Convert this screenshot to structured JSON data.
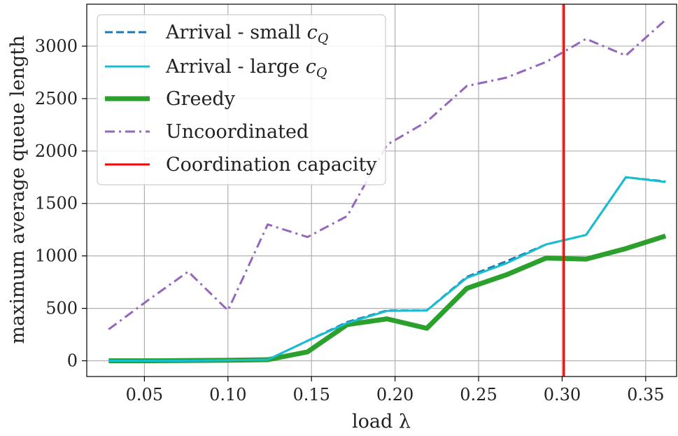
{
  "chart_data": {
    "type": "line",
    "title": "",
    "xlabel": "load  λ",
    "ylabel": "maximum average queue length",
    "xlim": [
      0.0155,
      0.3685
    ],
    "ylim": [
      -150,
      3400
    ],
    "xticks": [
      0.05,
      0.1,
      0.15,
      0.2,
      0.25,
      0.3,
      0.35
    ],
    "xtick_labels": [
      "0.05",
      "0.10",
      "0.15",
      "0.20",
      "0.25",
      "0.30",
      "0.35"
    ],
    "yticks": [
      0,
      500,
      1000,
      1500,
      2000,
      2500,
      3000
    ],
    "ytick_labels": [
      "0",
      "500",
      "1000",
      "1500",
      "2000",
      "2500",
      "3000"
    ],
    "grid": true,
    "legend_position": "top-left",
    "x": [
      0.0286,
      0.0524,
      0.0762,
      0.1,
      0.1238,
      0.1476,
      0.1714,
      0.1952,
      0.219,
      0.2429,
      0.2667,
      0.2905,
      0.3143,
      0.3381,
      0.3619
    ],
    "series": [
      {
        "name": "Arrival - small",
        "name_sub": "c",
        "name_subscript": "Q",
        "color": "#1f77b4",
        "style": "dashed",
        "values": [
          0,
          0,
          0,
          5,
          10,
          190,
          370,
          480,
          480,
          800,
          950,
          1110,
          1200,
          1750,
          1710
        ]
      },
      {
        "name": "Arrival - large",
        "name_sub": "c",
        "name_subscript": "Q",
        "color": "#17becf",
        "style": "solid",
        "values": [
          0,
          0,
          0,
          5,
          10,
          190,
          360,
          475,
          480,
          790,
          930,
          1110,
          1200,
          1750,
          1705
        ]
      },
      {
        "name": "Greedy",
        "color": "#2ca02c",
        "style": "thick",
        "values": [
          0,
          0,
          3,
          5,
          10,
          85,
          345,
          400,
          310,
          690,
          820,
          980,
          970,
          1070,
          1190
        ]
      },
      {
        "name": "Uncoordinated",
        "color": "#9467bd",
        "style": "dashdot",
        "values": [
          300,
          580,
          850,
          480,
          1300,
          1180,
          1380,
          2060,
          2280,
          2620,
          2700,
          2850,
          3070,
          2910,
          3250
        ]
      }
    ],
    "vline": {
      "name": "Coordination capacity",
      "color": "#ff0000",
      "x": 0.301
    }
  }
}
